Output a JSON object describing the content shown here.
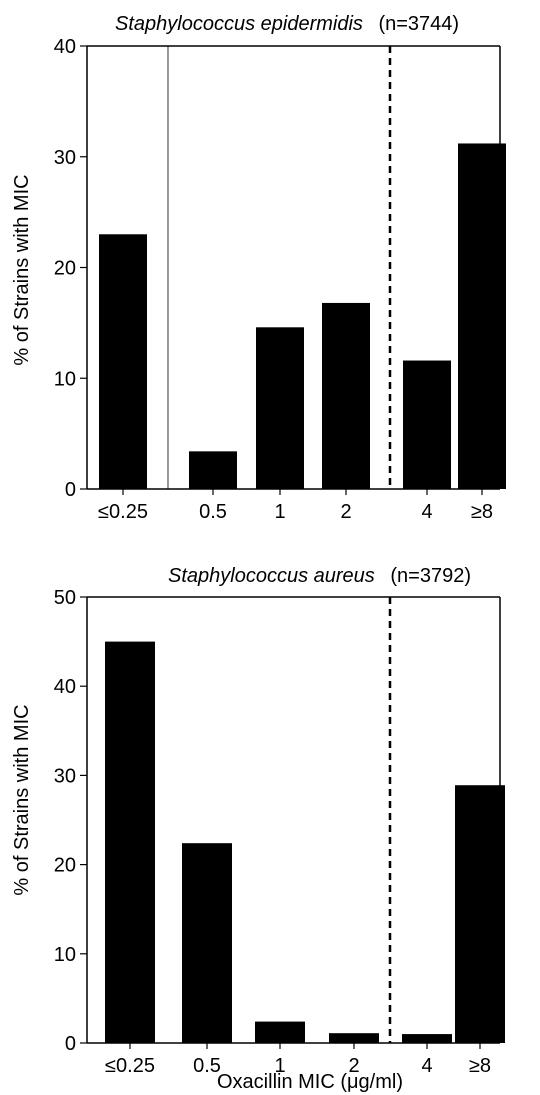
{
  "chart_data": [
    {
      "type": "bar",
      "title": "Staphylococcus epidermidis",
      "title_suffix": "(n=3744)",
      "xlabel": "",
      "ylabel": "% of Strains with MIC",
      "categories": [
        "≤0.25",
        "0.5",
        "1",
        "2",
        "4",
        "≥8"
      ],
      "values": [
        23,
        3.4,
        14.6,
        16.8,
        11.6,
        31.2
      ],
      "ylim": [
        0,
        40
      ],
      "yticks": [
        "0",
        "10",
        "20",
        "30",
        "40"
      ],
      "bar_color": "#000000",
      "reference_line": "dashed between 2 and 4",
      "separator_line": "solid between ≤0.25 and 0.5"
    },
    {
      "type": "bar",
      "title": "Staphylococcus aureus",
      "title_suffix": "(n=3792)",
      "xlabel": "Oxacillin MIC (μg/ml)",
      "ylabel": "% of Strains with MIC",
      "categories": [
        "≤0.25",
        "0.5",
        "1",
        "2",
        "4",
        "≥8"
      ],
      "values": [
        45,
        22.4,
        2.4,
        1.1,
        1.0,
        28.9
      ],
      "ylim": [
        0,
        50
      ],
      "yticks": [
        "0",
        "10",
        "20",
        "30",
        "40",
        "50"
      ],
      "bar_color": "#000000",
      "reference_line": "dashed between 2 and 4"
    }
  ]
}
